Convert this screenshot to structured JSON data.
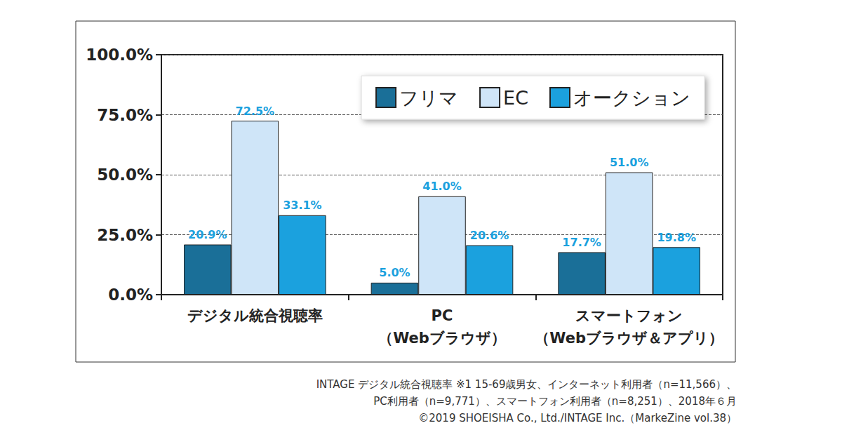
{
  "chart_data": {
    "type": "bar",
    "categories": [
      "デジタル統合視聴率",
      "PC\n（Webブラウザ）",
      "スマートフォン\n（Webブラウザ＆アプリ）"
    ],
    "series": [
      {
        "name": "フリマ",
        "color": "#1a6f98",
        "values": [
          20.9,
          5.0,
          17.7
        ],
        "value_labels": [
          "20.9%",
          "5.0%",
          "17.7%"
        ]
      },
      {
        "name": "EC",
        "color": "#cfe5f8",
        "values": [
          72.5,
          41.0,
          51.0
        ],
        "value_labels": [
          "72.5%",
          "41.0%",
          "51.0%"
        ]
      },
      {
        "name": "オークション",
        "color": "#1ba1de",
        "values": [
          33.1,
          20.6,
          19.8
        ],
        "value_labels": [
          "33.1%",
          "20.6%",
          "19.8%"
        ]
      }
    ],
    "ylim": [
      0,
      100
    ],
    "yticks": [
      {
        "value": 0,
        "label": "0.0%"
      },
      {
        "value": 25,
        "label": "25.0%"
      },
      {
        "value": 50,
        "label": "50.0%"
      },
      {
        "value": 75,
        "label": "75.0%"
      },
      {
        "value": 100,
        "label": "100.0%"
      }
    ],
    "grid": true,
    "legend": "top-right",
    "data_labels": true,
    "annotations": [
      "INTAGE デジタル統合視聴率 ※1 15-69歳男女、インターネット利用者（n=11,566）、",
      "PC利用者（n=9,771）、スマートフォン利用者（n=8,251）、2018年６月",
      "©2019 SHOEISHA Co., Ltd./INTAGE Inc.（MarkeZine vol.38）"
    ]
  }
}
